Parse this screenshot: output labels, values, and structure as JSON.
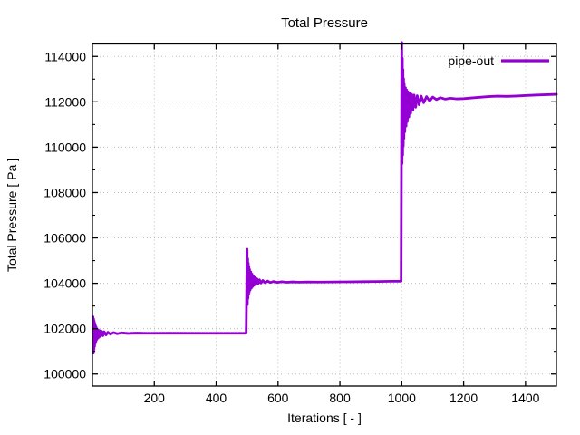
{
  "chart_data": {
    "type": "line",
    "title": "Total Pressure",
    "xlabel": "Iterations [ - ]",
    "ylabel": "Total Pressure [ Pa ]",
    "xlim": [
      0,
      1500
    ],
    "ylim": [
      99470,
      114550
    ],
    "x_ticks": [
      200,
      400,
      600,
      800,
      1000,
      1200,
      1400
    ],
    "y_ticks": [
      100000,
      102000,
      104000,
      106000,
      108000,
      110000,
      112000,
      114000
    ],
    "y_minor_step": 1000,
    "grid": "dotted",
    "grid_color": "#bdbdbd",
    "axis_color": "#000000",
    "line_color": "#9400d3",
    "line_width": 2.8,
    "legend_position": "top-right-inside",
    "series": [
      {
        "name": "pipe-out",
        "points": [
          [
            1,
            101800
          ],
          [
            2,
            102520
          ],
          [
            3,
            100920
          ],
          [
            4,
            102420
          ],
          [
            5,
            101080
          ],
          [
            6,
            102320
          ],
          [
            7,
            101220
          ],
          [
            8,
            102220
          ],
          [
            9,
            101340
          ],
          [
            10,
            102130
          ],
          [
            11,
            101430
          ],
          [
            12,
            102060
          ],
          [
            13,
            101500
          ],
          [
            14,
            102000
          ],
          [
            16,
            101560
          ],
          [
            18,
            101950
          ],
          [
            20,
            101610
          ],
          [
            23,
            101915
          ],
          [
            26,
            101655
          ],
          [
            30,
            101885
          ],
          [
            34,
            101690
          ],
          [
            38,
            101865
          ],
          [
            44,
            101725
          ],
          [
            50,
            101845
          ],
          [
            58,
            101755
          ],
          [
            68,
            101830
          ],
          [
            80,
            101775
          ],
          [
            95,
            101815
          ],
          [
            115,
            101790
          ],
          [
            140,
            101805
          ],
          [
            180,
            101798
          ],
          [
            250,
            101800
          ],
          [
            350,
            101798
          ],
          [
            450,
            101798
          ],
          [
            497,
            101798
          ],
          [
            500,
            105500
          ],
          [
            501,
            103060
          ],
          [
            502,
            105080
          ],
          [
            503,
            103340
          ],
          [
            504,
            104880
          ],
          [
            505,
            103500
          ],
          [
            506,
            104730
          ],
          [
            507,
            103610
          ],
          [
            508,
            104610
          ],
          [
            510,
            103710
          ],
          [
            512,
            104500
          ],
          [
            514,
            103790
          ],
          [
            516,
            104410
          ],
          [
            518,
            103855
          ],
          [
            520,
            104330
          ],
          [
            523,
            103915
          ],
          [
            526,
            104255
          ],
          [
            529,
            103955
          ],
          [
            532,
            104200
          ],
          [
            536,
            103985
          ],
          [
            540,
            104155
          ],
          [
            545,
            104010
          ],
          [
            551,
            104125
          ],
          [
            558,
            104025
          ],
          [
            566,
            104100
          ],
          [
            575,
            104035
          ],
          [
            586,
            104080
          ],
          [
            598,
            104040
          ],
          [
            612,
            104070
          ],
          [
            628,
            104045
          ],
          [
            646,
            104062
          ],
          [
            668,
            104050
          ],
          [
            695,
            104058
          ],
          [
            730,
            104055
          ],
          [
            775,
            104060
          ],
          [
            825,
            104065
          ],
          [
            875,
            104072
          ],
          [
            925,
            104080
          ],
          [
            965,
            104088
          ],
          [
            998,
            104092
          ],
          [
            1000,
            114620
          ],
          [
            1001,
            109280
          ],
          [
            1002,
            113920
          ],
          [
            1003,
            109650
          ],
          [
            1004,
            113420
          ],
          [
            1005,
            110060
          ],
          [
            1006,
            113020
          ],
          [
            1007,
            110380
          ],
          [
            1008,
            112780
          ],
          [
            1010,
            110680
          ],
          [
            1012,
            112620
          ],
          [
            1014,
            110930
          ],
          [
            1016,
            112520
          ],
          [
            1018,
            111130
          ],
          [
            1020,
            112440
          ],
          [
            1023,
            111330
          ],
          [
            1026,
            112380
          ],
          [
            1029,
            111490
          ],
          [
            1032,
            112330
          ],
          [
            1036,
            111630
          ],
          [
            1040,
            112300
          ],
          [
            1045,
            111760
          ],
          [
            1050,
            112270
          ],
          [
            1056,
            111870
          ],
          [
            1063,
            112250
          ],
          [
            1071,
            111960
          ],
          [
            1080,
            112230
          ],
          [
            1090,
            112040
          ],
          [
            1100,
            112210
          ],
          [
            1112,
            112100
          ],
          [
            1125,
            112180
          ],
          [
            1140,
            112120
          ],
          [
            1158,
            112160
          ],
          [
            1178,
            112130
          ],
          [
            1200,
            112140
          ],
          [
            1225,
            112170
          ],
          [
            1252,
            112200
          ],
          [
            1280,
            112230
          ],
          [
            1310,
            112250
          ],
          [
            1340,
            112240
          ],
          [
            1372,
            112255
          ],
          [
            1405,
            112280
          ],
          [
            1440,
            112300
          ],
          [
            1470,
            112315
          ],
          [
            1500,
            112330
          ]
        ]
      }
    ]
  }
}
